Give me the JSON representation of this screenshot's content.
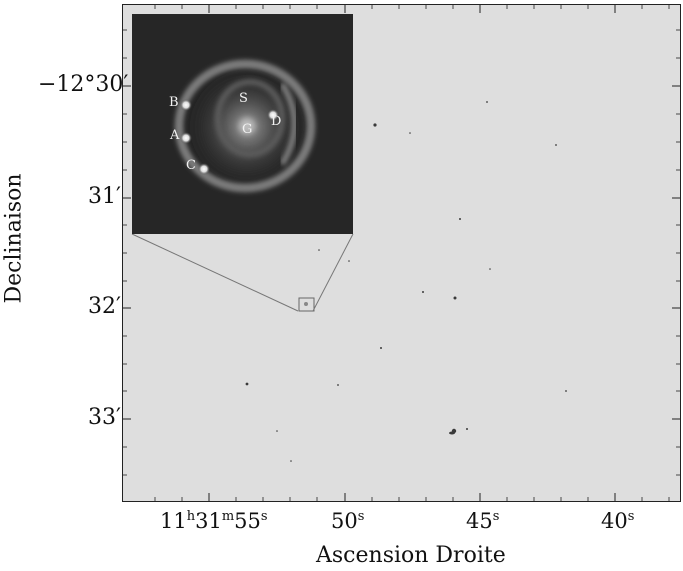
{
  "axes": {
    "xlabel": "Ascension Droite",
    "ylabel": "Declinaison",
    "yticks": [
      {
        "prefix": "−12°30",
        "suffix": "′"
      },
      {
        "prefix": "31",
        "suffix": "′"
      },
      {
        "prefix": "32",
        "suffix": "′"
      },
      {
        "prefix": "33",
        "suffix": "′"
      }
    ],
    "xticks": [
      {
        "h": "11",
        "hs": "h",
        "m": "31",
        "ms": "m",
        "s": "55",
        "ss": "s"
      },
      {
        "s": "50",
        "ss": "s"
      },
      {
        "s": "45",
        "ss": "s"
      },
      {
        "s": "40",
        "ss": "s"
      }
    ]
  },
  "inset": {
    "labels": {
      "a": "A",
      "b": "B",
      "c": "C",
      "d": "D",
      "s": "S",
      "g": "G"
    }
  }
}
